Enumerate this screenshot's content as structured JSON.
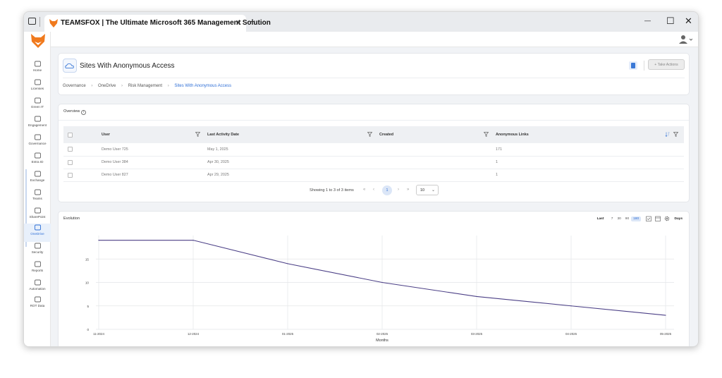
{
  "browser": {
    "tab_title": "TEAMSFOX | The Ultimate Microsoft 365 Management Solution",
    "new_tab_icon": "plus-icon",
    "close_tab_glyph": "✕",
    "plus_glyph": "+",
    "minimize_glyph": "—",
    "maximize_glyph": "☐",
    "close_window_glyph": "✕"
  },
  "sidebar": {
    "items": [
      {
        "label": "Home",
        "icon": "home-icon"
      },
      {
        "label": "Licenses",
        "icon": "license-icon"
      },
      {
        "label": "Green IT",
        "icon": "leaf-icon"
      },
      {
        "label": "Engagement",
        "icon": "engagement-icon"
      },
      {
        "label": "Governance",
        "icon": "governance-icon"
      },
      {
        "label": "Entra ID",
        "icon": "entra-icon"
      },
      {
        "label": "Exchange",
        "icon": "exchange-icon"
      },
      {
        "label": "Teams",
        "icon": "teams-icon"
      },
      {
        "label": "SharePoint",
        "icon": "sharepoint-icon"
      },
      {
        "label": "OneDrive",
        "icon": "onedrive-icon"
      },
      {
        "label": "Security",
        "icon": "shield-icon"
      },
      {
        "label": "Reports",
        "icon": "reports-icon"
      },
      {
        "label": "Automation",
        "icon": "gear-icon"
      },
      {
        "label": "ROT Data",
        "icon": "rot-icon"
      }
    ],
    "active": "OneDrive"
  },
  "header": {
    "title": "Sites With Anonymous Access",
    "take_actions": "+ Take Actions",
    "breadcrumb": [
      "Governance",
      "OneDrive",
      "Risk Management",
      "Sites With Anonymous Access"
    ],
    "breadcrumb_sep": "›"
  },
  "overview": {
    "title": "Overview",
    "info_glyph": "i",
    "columns": [
      "User",
      "Last Activity Date",
      "Created",
      "Anonymous Links"
    ],
    "rows": [
      {
        "user": "Demo User 725",
        "last_activity": "May 1, 2025",
        "created": "",
        "anonymous_links": "171"
      },
      {
        "user": "Demo User 384",
        "last_activity": "Apr 30, 2025",
        "created": "",
        "anonymous_links": "1"
      },
      {
        "user": "Demo User 827",
        "last_activity": "Apr 29, 2025",
        "created": "",
        "anonymous_links": "1"
      }
    ],
    "pager": {
      "text": "Showing 1 to 3 of 3 items",
      "current_page": "1",
      "page_size": "10",
      "first_glyph": "«",
      "prev_glyph": "‹",
      "next_glyph": "›",
      "last_glyph": "»",
      "dropdown_glyph": "⌄"
    }
  },
  "evolution": {
    "title": "Evolution",
    "range_label": "Last",
    "ranges": [
      "7",
      "30",
      "90",
      "180"
    ],
    "selected_range": "180",
    "unit_label": "Days"
  },
  "chart_data": {
    "type": "line",
    "x": [
      "11-2024",
      "12-2024",
      "01-2025",
      "02-2025",
      "03-2025",
      "04-2025",
      "05-2025"
    ],
    "series": [
      {
        "values": [
          19,
          19,
          14,
          10,
          7,
          5,
          3
        ],
        "color": "#4b3f86"
      }
    ],
    "xlabel": "Months",
    "ylabel": "",
    "yticks": [
      0,
      5,
      10,
      15
    ],
    "ylim": [
      0,
      20
    ],
    "grid": true
  }
}
